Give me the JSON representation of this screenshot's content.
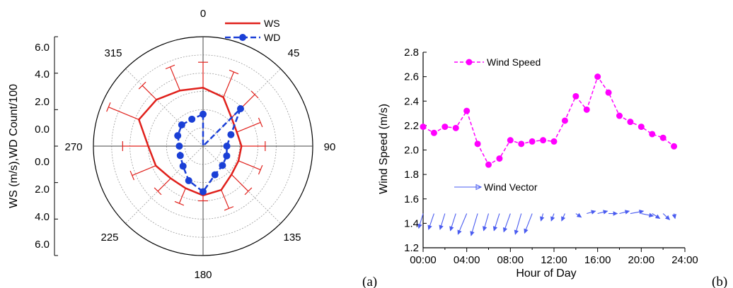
{
  "panel_labels": [
    "(a)",
    "(b)"
  ],
  "colors": {
    "ws": "#e0201b",
    "wd": "#1a3fd6",
    "wind_speed": "#ff00ff",
    "wind_vector": "#4a5cf0",
    "grid": "#9a9a9a",
    "axis": "#000000"
  },
  "chart_data": [
    {
      "type": "polar",
      "ylabel": "WS (m/s),WD Count/100",
      "radial_tick_labels": [
        "0.0",
        "2.0",
        "4.0",
        "6.0"
      ],
      "radial_range": [
        0,
        6
      ],
      "angle_tick_labels": [
        "0",
        "45",
        "90",
        "135",
        "180",
        "225",
        "270",
        "315"
      ],
      "grid": true,
      "legend_position": "top-right",
      "series": [
        {
          "name": "WS",
          "angles": [
            0,
            22.5,
            45,
            67.5,
            90,
            112.5,
            135,
            157.5,
            180,
            202.5,
            225,
            247.5,
            270,
            292.5,
            315,
            337.5
          ],
          "values": [
            3.2,
            2.9,
            2.2,
            2.0,
            2.1,
            2.1,
            2.2,
            2.6,
            2.7,
            2.5,
            2.5,
            2.8,
            3.0,
            3.8,
            3.6,
            3.3
          ],
          "errors": [
            1.4,
            1.5,
            1.8,
            1.4,
            1.3,
            1.3,
            1.3,
            1.1,
            0.3,
            0.9,
            1.0,
            1.4,
            1.4,
            1.8,
            1.1,
            1.4
          ]
        },
        {
          "name": "WD",
          "angles": [
            0,
            22.5,
            45,
            67.5,
            90,
            112.5,
            135,
            157.5,
            180,
            202.5,
            225,
            247.5,
            270,
            292.5,
            315,
            337.5
          ],
          "values": [
            1.75,
            0.0,
            2.9,
            1.65,
            1.3,
            1.4,
            1.5,
            1.7,
            2.5,
            2.05,
            1.55,
            1.35,
            1.3,
            1.5,
            1.65,
            1.6
          ]
        }
      ]
    },
    {
      "type": "line",
      "xlabel": "Hour of Day",
      "ylabel": "Wind Speed (m/s)",
      "x_tick_labels": [
        "00:00",
        "04:00",
        "08:00",
        "12:00",
        "16:00",
        "20:00",
        "24:00"
      ],
      "xlim": [
        0,
        24
      ],
      "ylim": [
        1.2,
        2.8
      ],
      "y_ticks": [
        1.2,
        1.4,
        1.6,
        1.8,
        2.0,
        2.2,
        2.4,
        2.6,
        2.8
      ],
      "series": [
        {
          "name": "Wind Speed",
          "x": [
            0,
            1,
            2,
            3,
            4,
            5,
            6,
            7,
            8,
            9,
            10,
            11,
            12,
            13,
            14,
            15,
            16,
            17,
            18,
            19,
            20,
            21,
            22,
            23
          ],
          "values": [
            2.19,
            2.14,
            2.19,
            2.18,
            2.32,
            2.05,
            1.88,
            1.93,
            2.08,
            2.05,
            2.07,
            2.08,
            2.07,
            2.24,
            2.44,
            2.33,
            2.6,
            2.47,
            2.28,
            2.23,
            2.19,
            2.13,
            2.1,
            2.03
          ]
        },
        {
          "name": "Wind Vector",
          "x": [
            0,
            1,
            2,
            3,
            4,
            5,
            6,
            7,
            8,
            9,
            10,
            11,
            12,
            13,
            14,
            15,
            16,
            17,
            18,
            19,
            20,
            21,
            22,
            23
          ],
          "anchor_values": [
            1.48,
            1.48,
            1.48,
            1.48,
            1.48,
            1.48,
            1.48,
            1.48,
            1.48,
            1.48,
            1.48,
            1.48,
            1.48,
            1.48,
            1.48,
            1.48,
            1.48,
            1.48,
            1.48,
            1.48,
            1.48,
            1.48,
            1.48,
            1.48
          ],
          "dx_hours": [
            -0.4,
            -0.5,
            -0.45,
            -0.5,
            -0.8,
            -0.6,
            -0.45,
            -0.5,
            -0.6,
            -0.55,
            -0.7,
            -0.2,
            -0.25,
            -0.3,
            0.5,
            0.8,
            0.9,
            0.8,
            0.9,
            1.2,
            1.1,
            0.7,
            0.6,
            0.1
          ],
          "dy_values": [
            -0.12,
            -0.13,
            -0.13,
            -0.14,
            -0.17,
            -0.18,
            -0.14,
            -0.14,
            -0.15,
            -0.17,
            -0.16,
            -0.06,
            -0.06,
            -0.06,
            -0.03,
            0.02,
            0.02,
            0.0,
            0.02,
            0.02,
            -0.02,
            -0.04,
            -0.05,
            -0.04
          ]
        }
      ]
    }
  ]
}
